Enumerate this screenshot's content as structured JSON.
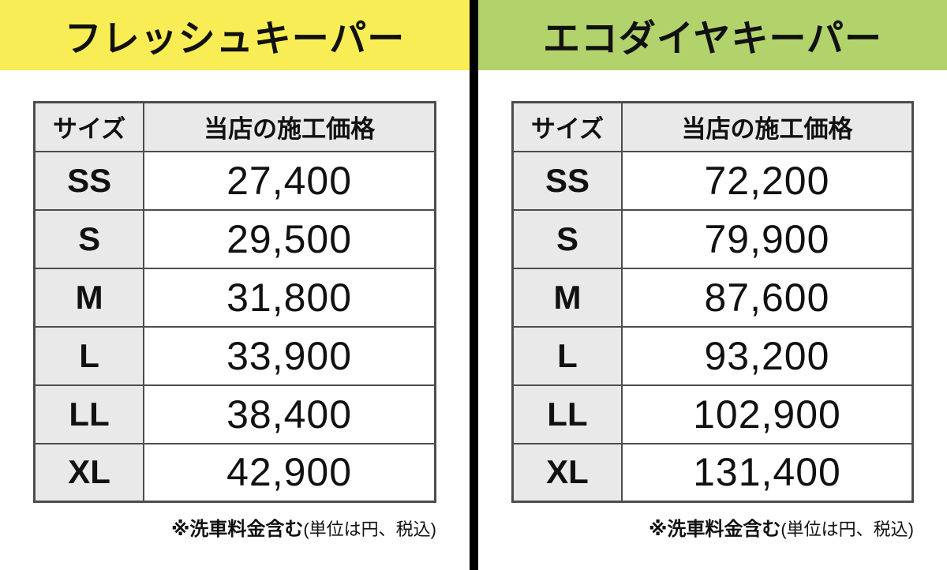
{
  "theme": {
    "border_color": "#4d4d4d",
    "header_bg": "#e9e9e9",
    "divider_color": "#000000",
    "text_color": "#111111"
  },
  "panels": [
    {
      "title": "フレッシュキーパー",
      "accent_color": "#f9ed55",
      "columns": {
        "size": "サイズ",
        "price": "当店の施工価格"
      },
      "rows": [
        {
          "size": "SS",
          "price": "27,400"
        },
        {
          "size": "S",
          "price": "29,500"
        },
        {
          "size": "M",
          "price": "31,800"
        },
        {
          "size": "L",
          "price": "33,900"
        },
        {
          "size": "LL",
          "price": "38,400"
        },
        {
          "size": "XL",
          "price": "42,900"
        }
      ],
      "footnote": {
        "bold": "※洗車料金含む",
        "normal": "(単位は円、税込)"
      }
    },
    {
      "title": "エコダイヤキーパー",
      "accent_color": "#b2d36c",
      "columns": {
        "size": "サイズ",
        "price": "当店の施工価格"
      },
      "rows": [
        {
          "size": "SS",
          "price": "72,200"
        },
        {
          "size": "S",
          "price": "79,900"
        },
        {
          "size": "M",
          "price": "87,600"
        },
        {
          "size": "L",
          "price": "93,200"
        },
        {
          "size": "LL",
          "price": "102,900"
        },
        {
          "size": "XL",
          "price": "131,400"
        }
      ],
      "footnote": {
        "bold": "※洗車料金含む",
        "normal": "(単位は円、税込)"
      }
    }
  ],
  "chart_data": [
    {
      "type": "table",
      "title": "フレッシュキーパー",
      "columns": [
        "サイズ",
        "当店の施工価格"
      ],
      "rows": [
        [
          "SS",
          27400
        ],
        [
          "S",
          29500
        ],
        [
          "M",
          31800
        ],
        [
          "L",
          33900
        ],
        [
          "LL",
          38400
        ],
        [
          "XL",
          42900
        ]
      ],
      "unit": "円(税込)",
      "note": "※洗車料金含む(単位は円、税込)"
    },
    {
      "type": "table",
      "title": "エコダイヤキーパー",
      "columns": [
        "サイズ",
        "当店の施工価格"
      ],
      "rows": [
        [
          "SS",
          72200
        ],
        [
          "S",
          79900
        ],
        [
          "M",
          87600
        ],
        [
          "L",
          93200
        ],
        [
          "LL",
          102900
        ],
        [
          "XL",
          131400
        ]
      ],
      "unit": "円(税込)",
      "note": "※洗車料金含む(単位は円、税込)"
    }
  ]
}
